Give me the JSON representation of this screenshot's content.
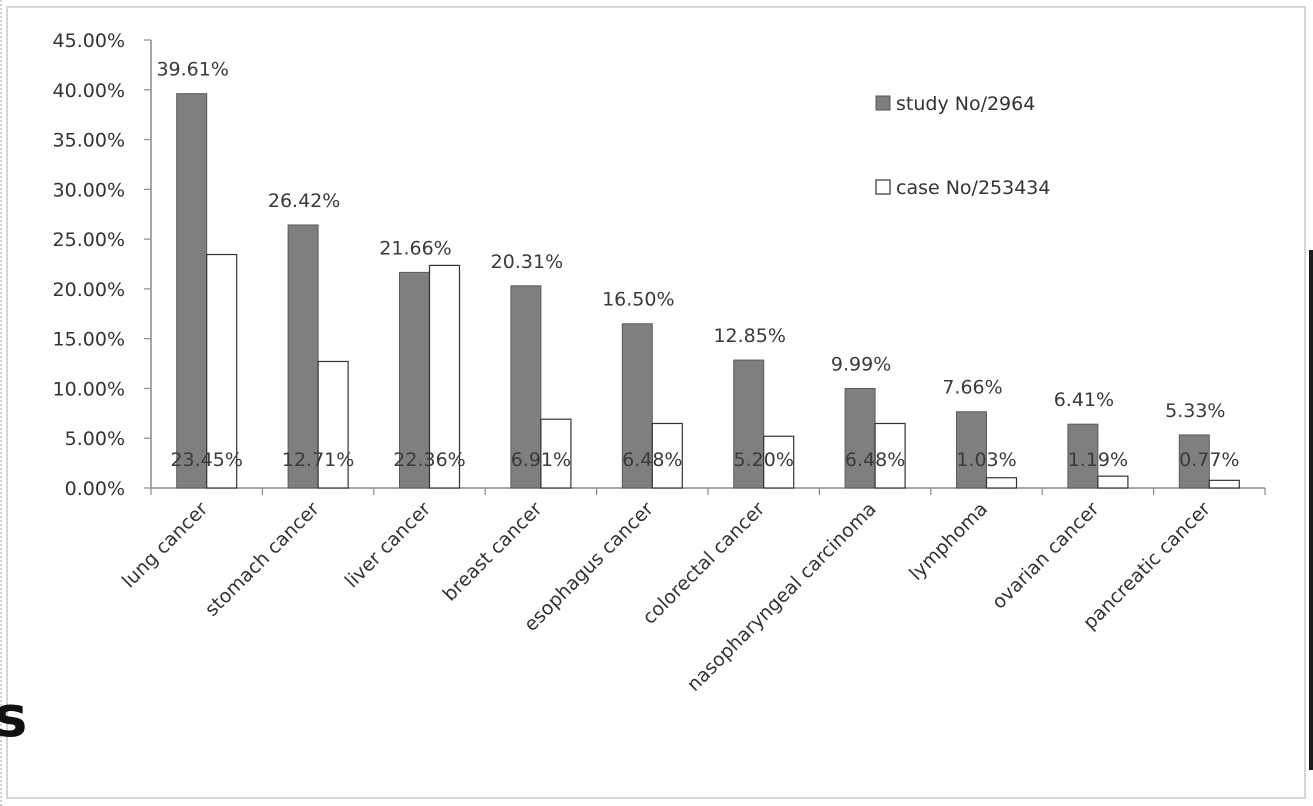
{
  "chart_data": {
    "type": "bar",
    "categories": [
      "lung cancer",
      "stomach cancer",
      "liver cancer",
      "breast cancer",
      "esophagus cancer",
      "colorectal cancer",
      "nasopharyngeal carcinoma",
      "lymphoma",
      "ovarian cancer",
      "pancreatic cancer"
    ],
    "series": [
      {
        "name": "study No/2964",
        "color": "#7f7f7f",
        "values": [
          39.61,
          26.42,
          21.66,
          20.31,
          16.5,
          12.85,
          9.99,
          7.66,
          6.41,
          5.33
        ],
        "labels": [
          "39.61%",
          "26.42%",
          "21.66%",
          "20.31%",
          "16.50%",
          "12.85%",
          "9.99%",
          "7.66%",
          "6.41%",
          "5.33%"
        ]
      },
      {
        "name": "case No/253434",
        "color": "#ffffff",
        "values": [
          23.45,
          12.71,
          22.36,
          6.91,
          6.48,
          5.2,
          6.48,
          1.03,
          1.19,
          0.77
        ],
        "labels": [
          "23.45%",
          "12.71%",
          "22.36%",
          "6.91%",
          "6.48%",
          "5.20%",
          "6.48%",
          "1.03%",
          "1.19%",
          "0.77%"
        ]
      }
    ],
    "y_ticks": [
      "0.00%",
      "5.00%",
      "10.00%",
      "15.00%",
      "20.00%",
      "25.00%",
      "30.00%",
      "35.00%",
      "40.00%",
      "45.00%"
    ],
    "ylim": [
      0,
      45
    ],
    "grid": false,
    "legend_position": "top-right",
    "title": "",
    "xlabel": "",
    "ylabel": ""
  },
  "stray_text": "s"
}
